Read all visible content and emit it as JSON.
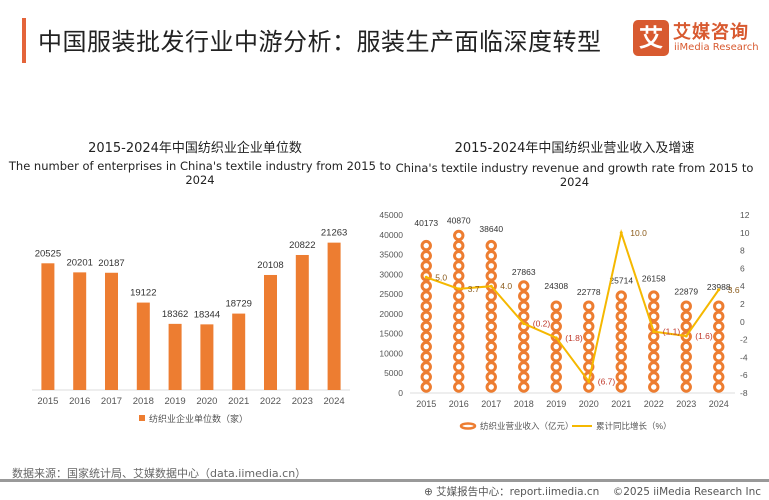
{
  "header": {
    "title": "中国服装批发行业中游分析：服装生产面临深度转型",
    "logo_mark": "艾",
    "logo_cn": "艾媒咨询",
    "logo_en": "iiMedia Research"
  },
  "chart_data": [
    {
      "type": "bar",
      "title": "2015-2024年中国纺织业企业单位数",
      "subtitle": "The number of enterprises in China's textile industry from 2015 to 2024",
      "categories": [
        "2015",
        "2016",
        "2017",
        "2018",
        "2019",
        "2020",
        "2021",
        "2022",
        "2023",
        "2024"
      ],
      "series": [
        {
          "name": "纺织业企业单位数（家）",
          "values": [
            20525,
            20201,
            20187,
            19122,
            18362,
            18344,
            18729,
            20108,
            20822,
            21263
          ],
          "color": "#ed7d31"
        }
      ],
      "data_labels": [
        "20525",
        "20201",
        "20187",
        "19122",
        "18362",
        "18344",
        "18729",
        "20108",
        "20822",
        "21263"
      ],
      "legend": "bottom",
      "ylim": [
        16000,
        22000
      ],
      "grid": false
    },
    {
      "type": "bar+line",
      "title": "2015-2024年中国纺织业营业收入及增速",
      "subtitle": "China's textile industry revenue and growth rate from 2015 to 2024",
      "categories": [
        "2015",
        "2016",
        "2017",
        "2018",
        "2019",
        "2020",
        "2021",
        "2022",
        "2023",
        "2024"
      ],
      "series": [
        {
          "name": "纺织业营业收入（亿元）",
          "type": "bar",
          "axis": "left",
          "values": [
            40173,
            40870,
            38640,
            27863,
            24308,
            22778,
            25714,
            26158,
            22879,
            23988
          ],
          "color": "#ed7d31"
        },
        {
          "name": "累计同比增长（%）",
          "type": "line",
          "axis": "right",
          "values": [
            5.0,
            3.7,
            4.0,
            -0.2,
            -1.8,
            -6.7,
            10.0,
            -1.1,
            -1.6,
            3.6
          ],
          "color": "#f5b800"
        }
      ],
      "bar_labels": [
        "40173",
        "40870",
        "38640",
        "27863",
        "24308",
        "22778",
        "25714",
        "26158",
        "22879",
        "23988"
      ],
      "line_labels": [
        "5.0",
        "3.7",
        "4.0",
        "(0.2)",
        "(1.8)",
        "(6.7)",
        "10.0",
        "(1.1)",
        "(1.6)",
        "3.6"
      ],
      "y_left": {
        "min": 0,
        "max": 45000,
        "ticks": [
          "0",
          "5000",
          "10000",
          "15000",
          "20000",
          "25000",
          "30000",
          "35000",
          "40000",
          "45000"
        ]
      },
      "y_right": {
        "min": -8,
        "max": 12,
        "ticks": [
          "-8",
          "-6",
          "-4",
          "-2",
          "0",
          "2",
          "4",
          "6",
          "8",
          "10",
          "12"
        ]
      },
      "negative_label_color": "#c0392b",
      "legend": "bottom",
      "grid": false
    }
  ],
  "source": "数据来源：国家统计局、艾媒数据中心（data.iimedia.cn）",
  "footer": {
    "report": "艾媒报告中心：report.iimedia.cn",
    "copyright": "©2025  iiMedia Research  Inc"
  }
}
